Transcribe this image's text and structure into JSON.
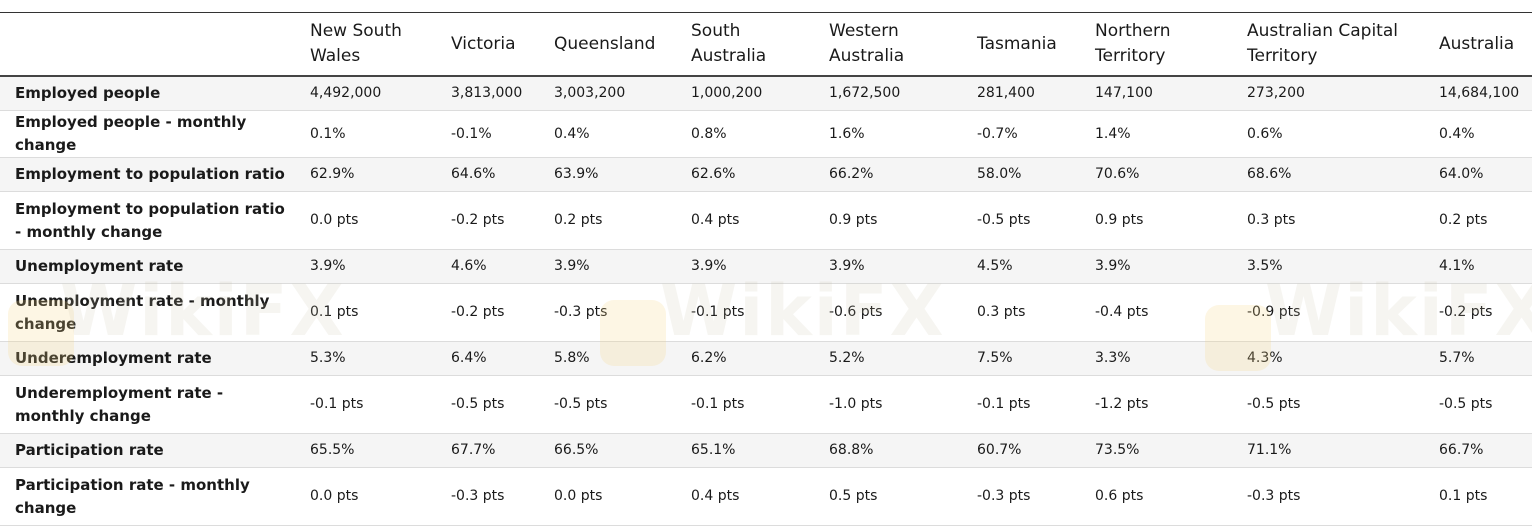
{
  "table": {
    "headers": [
      "",
      "New South Wales",
      "Victoria",
      "Queensland",
      "South Australia",
      "Western Australia",
      "Tasmania",
      "Northern Territory",
      "Australian Capital Territory",
      "Australia"
    ],
    "rows": [
      {
        "label": "Employed people",
        "values": [
          "4,492,000",
          "3,813,000",
          "3,003,200",
          "1,000,200",
          "1,672,500",
          "281,400",
          "147,100",
          "273,200",
          "14,684,100"
        ]
      },
      {
        "label": "Employed people - monthly change",
        "values": [
          "0.1%",
          "-0.1%",
          "0.4%",
          "0.8%",
          "1.6%",
          "-0.7%",
          "1.4%",
          "0.6%",
          "0.4%"
        ]
      },
      {
        "label": "Employment to population ratio",
        "values": [
          "62.9%",
          "64.6%",
          "63.9%",
          "62.6%",
          "66.2%",
          "58.0%",
          "70.6%",
          "68.6%",
          "64.0%"
        ]
      },
      {
        "label": "Employment to population ratio - monthly change",
        "values": [
          "0.0 pts",
          "-0.2 pts",
          "0.2 pts",
          "0.4 pts",
          "0.9 pts",
          "-0.5 pts",
          "0.9 pts",
          "0.3 pts",
          "0.2 pts"
        ]
      },
      {
        "label": "Unemployment rate",
        "values": [
          "3.9%",
          "4.6%",
          "3.9%",
          "3.9%",
          "3.9%",
          "4.5%",
          "3.9%",
          "3.5%",
          "4.1%"
        ]
      },
      {
        "label": "Unemployment rate - monthly change",
        "values": [
          "0.1 pts",
          "-0.2 pts",
          "-0.3 pts",
          "-0.1 pts",
          "-0.6 pts",
          "0.3 pts",
          "-0.4 pts",
          "-0.9 pts",
          "-0.2 pts"
        ]
      },
      {
        "label": "Underemployment rate",
        "values": [
          "5.3%",
          "6.4%",
          "5.8%",
          "6.2%",
          "5.2%",
          "7.5%",
          "3.3%",
          "4.3%",
          "5.7%"
        ]
      },
      {
        "label": "Underemployment rate - monthly change",
        "values": [
          "-0.1 pts",
          "-0.5 pts",
          "-0.5 pts",
          "-0.1 pts",
          "-1.0 pts",
          "-0.1 pts",
          "-1.2 pts",
          "-0.5 pts",
          "-0.5 pts"
        ]
      },
      {
        "label": "Participation rate",
        "values": [
          "65.5%",
          "67.7%",
          "66.5%",
          "65.1%",
          "68.8%",
          "60.7%",
          "73.5%",
          "71.1%",
          "66.7%"
        ]
      },
      {
        "label": "Participation rate - monthly change",
        "values": [
          "0.0 pts",
          "-0.3 pts",
          "0.0 pts",
          "0.4 pts",
          "0.5 pts",
          "-0.3 pts",
          "0.6 pts",
          "-0.3 pts",
          "0.1 pts"
        ]
      }
    ]
  },
  "watermark": {
    "text": "WikiFX"
  }
}
